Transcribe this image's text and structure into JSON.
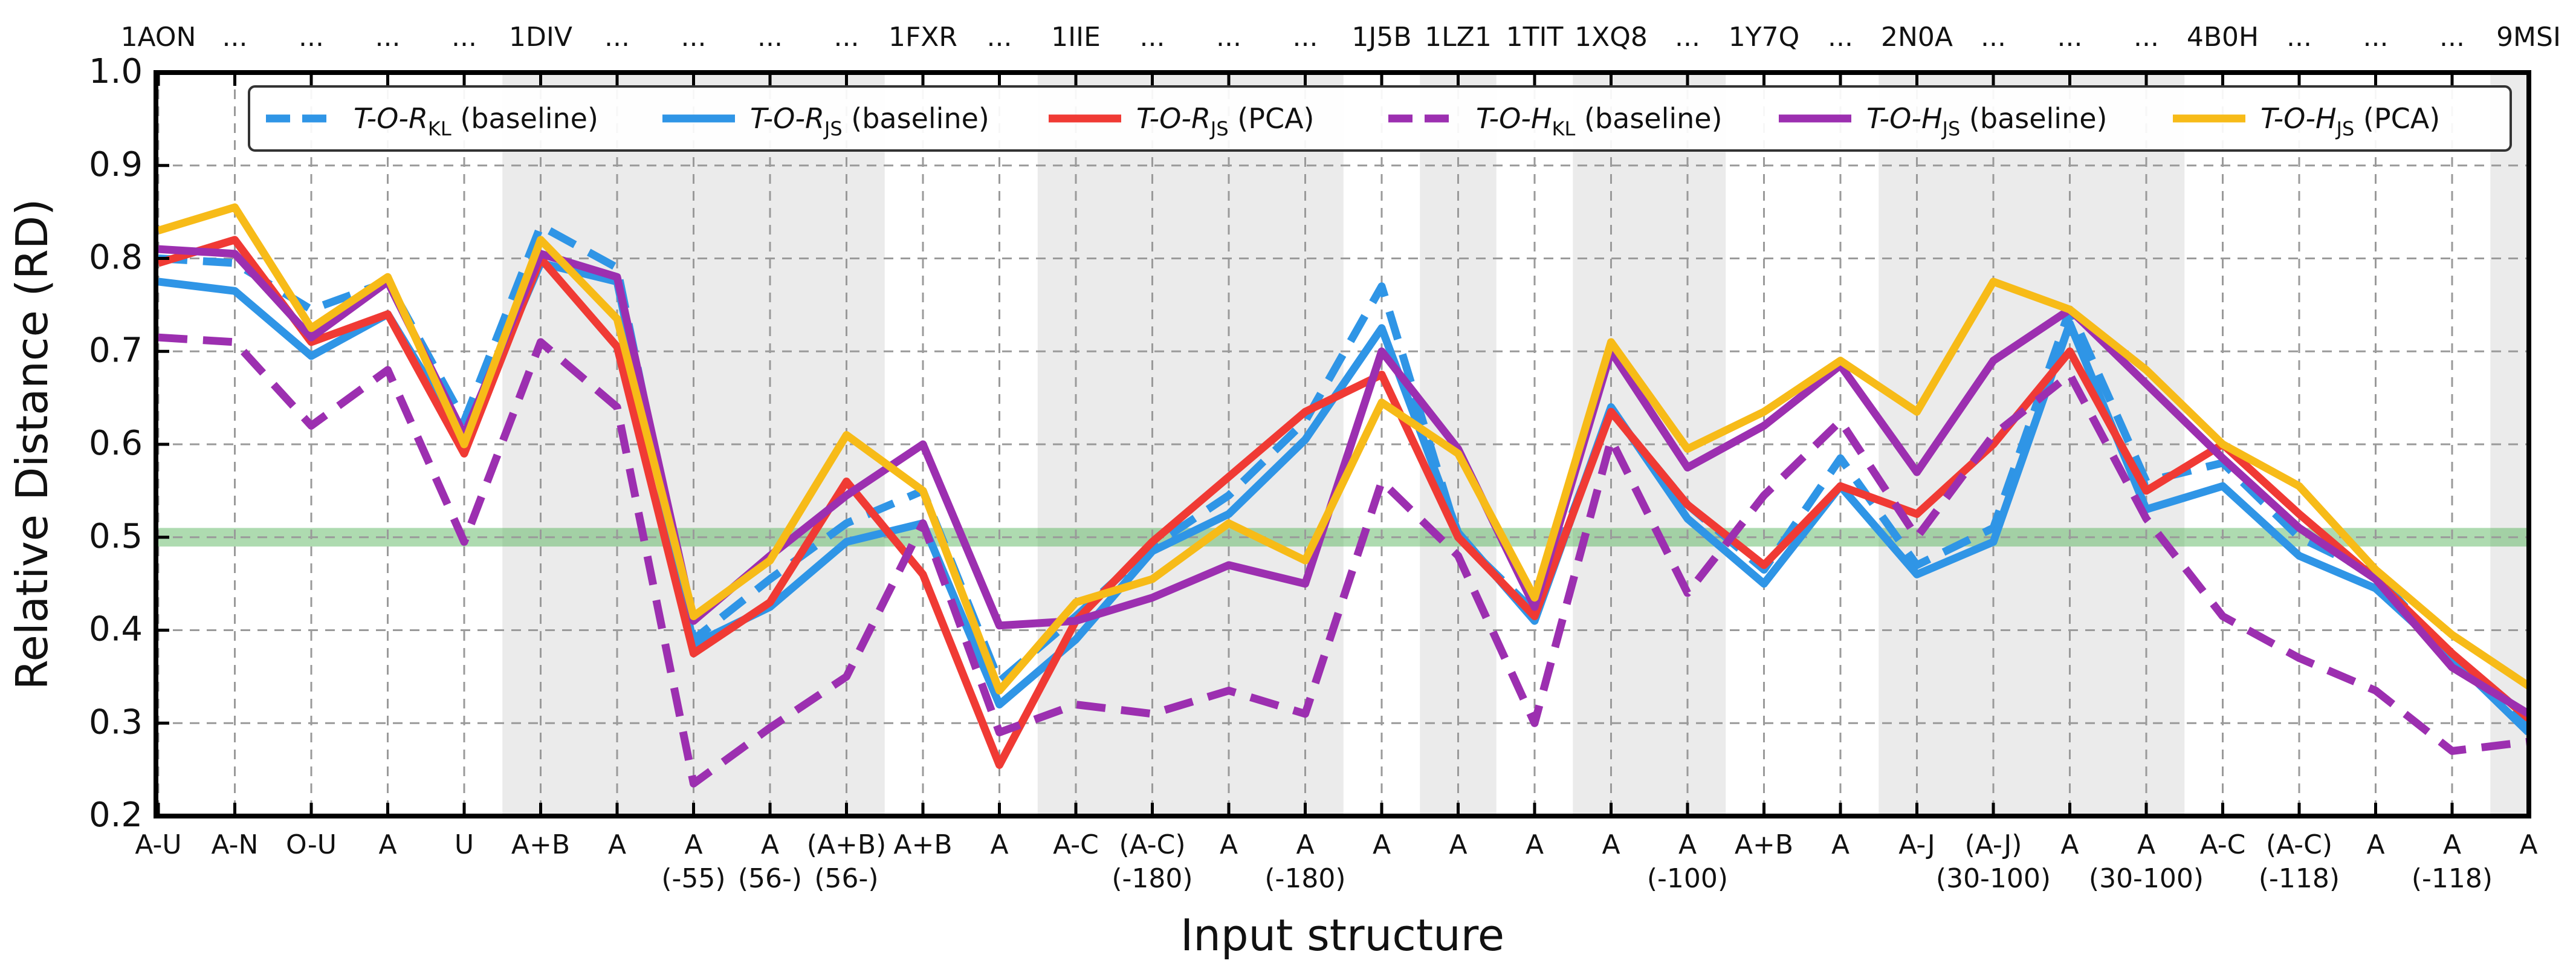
{
  "chart_data": {
    "type": "line",
    "title": "",
    "xlabel": "Input structure",
    "ylabel": "Relative Distance (RD)",
    "ylim": [
      0.2,
      1.0
    ],
    "yticks": [
      "0.2",
      "0.3",
      "0.4",
      "0.5",
      "0.6",
      "0.7",
      "0.8",
      "0.9",
      "1.0"
    ],
    "grid": true,
    "legend_position": "top",
    "categories": [
      [
        "A-U"
      ],
      [
        "A-N"
      ],
      [
        "O-U"
      ],
      [
        "A"
      ],
      [
        "U"
      ],
      [
        "A+B"
      ],
      [
        "A"
      ],
      [
        "A",
        "(-55)"
      ],
      [
        "A",
        "(56-)"
      ],
      [
        "(A+B)",
        "(56-)"
      ],
      [
        "A+B"
      ],
      [
        "A"
      ],
      [
        "A-C"
      ],
      [
        "(A-C)",
        "(-180)"
      ],
      [
        "A"
      ],
      [
        "A",
        "(-180)"
      ],
      [
        "A"
      ],
      [
        "A"
      ],
      [
        "A"
      ],
      [
        "A"
      ],
      [
        "A",
        "(-100)"
      ],
      [
        "A+B"
      ],
      [
        "A"
      ],
      [
        "A-J"
      ],
      [
        "(A-J)",
        "(30-100)"
      ],
      [
        "A"
      ],
      [
        "A",
        "(30-100)"
      ],
      [
        "A-C"
      ],
      [
        "(A-C)",
        "(-118)"
      ],
      [
        "A"
      ],
      [
        "A",
        "(-118)"
      ],
      [
        "A"
      ]
    ],
    "top_labels": [
      "1AON",
      "...",
      "...",
      "...",
      "...",
      "1DIV",
      "...",
      "...",
      "...",
      "...",
      "1FXR",
      "...",
      "1IIE",
      "...",
      "...",
      "...",
      "1J5B",
      "1LZ1",
      "1TIT",
      "1XQ8",
      "...",
      "1Y7Q",
      "...",
      "2N0A",
      "...",
      "...",
      "...",
      "4B0H",
      "...",
      "...",
      "...",
      "9MSI"
    ],
    "shaded_bands": [
      [
        5,
        9
      ],
      [
        12,
        15
      ],
      [
        17,
        17
      ],
      [
        19,
        20
      ],
      [
        23,
        26
      ],
      [
        31,
        31
      ]
    ],
    "reference_line": {
      "y": 0.5,
      "band": [
        0.49,
        0.51
      ],
      "color": "#4caf50"
    },
    "series": [
      {
        "name": "T-O-RKL (baseline)",
        "name_main": "T-O-R",
        "name_sub": "KL",
        "name_suffix": " (baseline)",
        "color": "#2f95e6",
        "style": "dashed",
        "values": [
          0.8,
          0.795,
          0.745,
          0.775,
          0.625,
          0.835,
          0.79,
          0.39,
          0.455,
          0.515,
          0.55,
          0.345,
          0.415,
          0.49,
          0.545,
          0.625,
          0.77,
          0.5,
          0.42,
          0.635,
          0.535,
          0.465,
          0.585,
          0.47,
          0.51,
          0.745,
          0.56,
          0.58,
          0.5,
          0.46,
          0.37,
          0.3
        ]
      },
      {
        "name": "T-O-RJS (baseline)",
        "name_main": "T-O-R",
        "name_sub": "JS",
        "name_suffix": " (baseline)",
        "color": "#2f95e6",
        "style": "solid",
        "values": [
          0.775,
          0.765,
          0.695,
          0.74,
          0.605,
          0.795,
          0.775,
          0.385,
          0.425,
          0.495,
          0.515,
          0.32,
          0.39,
          0.485,
          0.525,
          0.605,
          0.725,
          0.505,
          0.41,
          0.64,
          0.52,
          0.45,
          0.555,
          0.46,
          0.495,
          0.73,
          0.53,
          0.555,
          0.48,
          0.445,
          0.37,
          0.29
        ]
      },
      {
        "name": "T-O-RJS (PCA)",
        "name_main": "T-O-R",
        "name_sub": "JS",
        "name_suffix": " (PCA)",
        "color": "#f03a34",
        "style": "solid",
        "values": [
          0.795,
          0.82,
          0.71,
          0.74,
          0.59,
          0.8,
          0.705,
          0.375,
          0.43,
          0.56,
          0.46,
          0.255,
          0.41,
          0.495,
          0.565,
          0.635,
          0.675,
          0.5,
          0.415,
          0.635,
          0.535,
          0.47,
          0.555,
          0.525,
          0.6,
          0.7,
          0.55,
          0.6,
          0.525,
          0.455,
          0.375,
          0.305
        ]
      },
      {
        "name": "T-O-HKL (baseline)",
        "name_main": "T-O-H",
        "name_sub": "KL",
        "name_suffix": " (baseline)",
        "color": "#9c2fb0",
        "style": "dashed",
        "values": [
          0.715,
          0.71,
          0.62,
          0.68,
          0.495,
          0.71,
          0.64,
          0.235,
          0.295,
          0.35,
          0.515,
          0.29,
          0.32,
          0.31,
          0.335,
          0.31,
          0.56,
          0.48,
          0.3,
          0.605,
          0.44,
          0.545,
          0.625,
          0.5,
          0.61,
          0.675,
          0.52,
          0.415,
          0.37,
          0.335,
          0.27,
          0.28
        ]
      },
      {
        "name": "T-O-HJS (baseline)",
        "name_main": "T-O-H",
        "name_sub": "JS",
        "name_suffix": " (baseline)",
        "color": "#9c2fb0",
        "style": "solid",
        "values": [
          0.81,
          0.805,
          0.715,
          0.775,
          0.61,
          0.805,
          0.78,
          0.41,
          0.48,
          0.545,
          0.6,
          0.405,
          0.41,
          0.435,
          0.47,
          0.45,
          0.7,
          0.595,
          0.425,
          0.7,
          0.575,
          0.62,
          0.685,
          0.57,
          0.69,
          0.745,
          0.665,
          0.585,
          0.51,
          0.455,
          0.36,
          0.31
        ]
      },
      {
        "name": "T-O-HJS (PCA)",
        "name_main": "T-O-H",
        "name_sub": "JS",
        "name_suffix": " (PCA)",
        "color": "#f7bb18",
        "style": "solid",
        "values": [
          0.83,
          0.855,
          0.725,
          0.78,
          0.6,
          0.82,
          0.735,
          0.415,
          0.475,
          0.61,
          0.55,
          0.335,
          0.43,
          0.455,
          0.515,
          0.475,
          0.645,
          0.59,
          0.435,
          0.71,
          0.595,
          0.635,
          0.69,
          0.635,
          0.775,
          0.745,
          0.68,
          0.6,
          0.555,
          0.465,
          0.395,
          0.34
        ]
      }
    ]
  }
}
